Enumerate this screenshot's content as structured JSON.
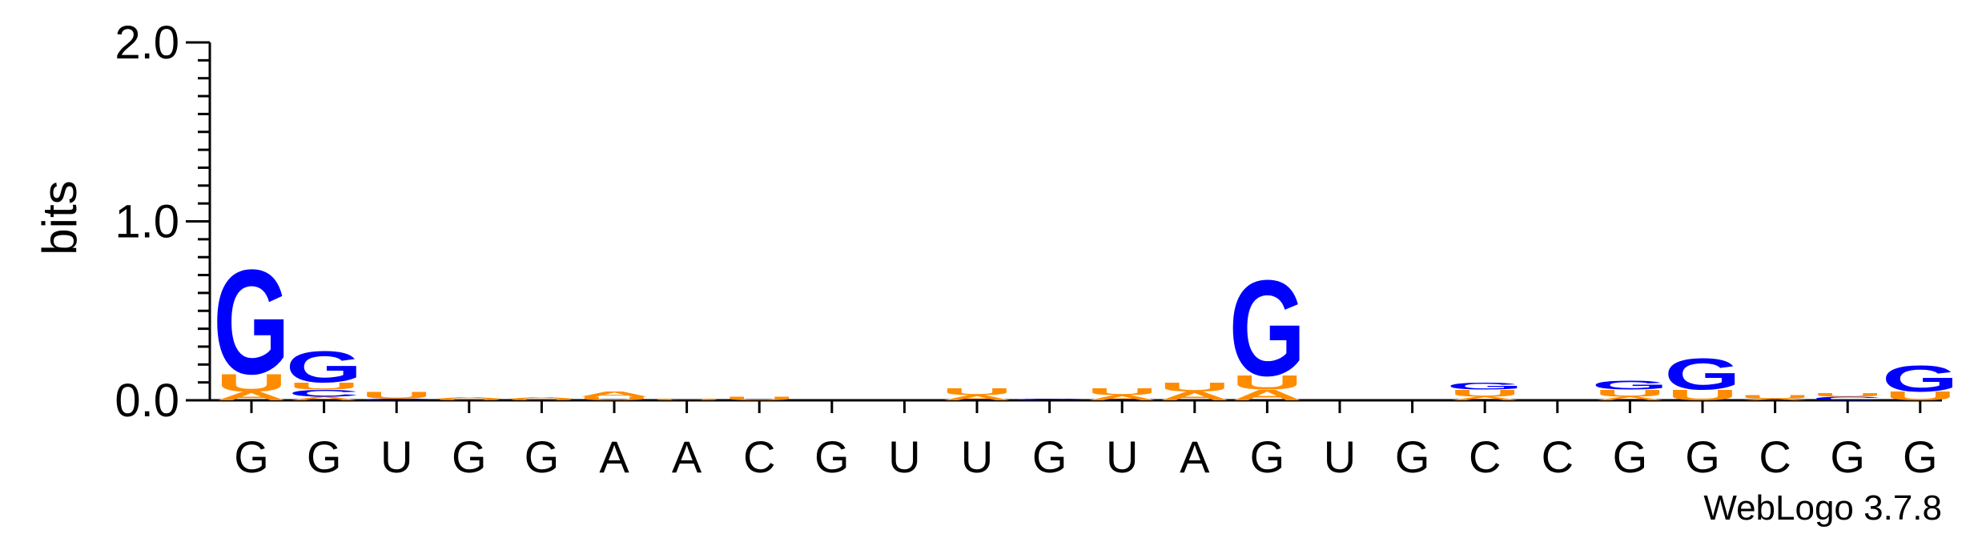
{
  "chart_data": {
    "type": "sequence-logo",
    "ylabel": "bits",
    "ylim": [
      0,
      2.0
    ],
    "yticks": [
      "0.0",
      "1.0",
      "2.0"
    ],
    "credit": "WebLogo 3.7.8",
    "colors": {
      "G": "#0000ff",
      "U": "#ff8c00",
      "A": "#ff8c00",
      "C": "#0000ff"
    },
    "positions": [
      {
        "label": "G",
        "stack": [
          [
            "A",
            0.05
          ],
          [
            "U",
            0.1
          ],
          [
            "G",
            0.6
          ]
        ]
      },
      {
        "label": "G",
        "stack": [
          [
            "A",
            0.02
          ],
          [
            "C",
            0.04
          ],
          [
            "U",
            0.04
          ],
          [
            "G",
            0.18
          ]
        ]
      },
      {
        "label": "U",
        "stack": [
          [
            "C",
            0.01
          ],
          [
            "U",
            0.04
          ]
        ]
      },
      {
        "label": "G",
        "stack": [
          [
            "U",
            0.01
          ],
          [
            "A",
            0.01
          ]
        ]
      },
      {
        "label": "G",
        "stack": [
          [
            "U",
            0.01
          ],
          [
            "A",
            0.01
          ]
        ]
      },
      {
        "label": "A",
        "stack": [
          [
            "U",
            0.02
          ],
          [
            "A",
            0.03
          ]
        ]
      },
      {
        "label": "A",
        "stack": [
          [
            "U",
            0.01
          ]
        ]
      },
      {
        "label": "C",
        "stack": [
          [
            "U",
            0.02
          ]
        ]
      },
      {
        "label": "G",
        "stack": []
      },
      {
        "label": "U",
        "stack": []
      },
      {
        "label": "U",
        "stack": [
          [
            "A",
            0.03
          ],
          [
            "U",
            0.04
          ]
        ]
      },
      {
        "label": "G",
        "stack": [
          [
            "C",
            0.01
          ]
        ]
      },
      {
        "label": "U",
        "stack": [
          [
            "A",
            0.03
          ],
          [
            "U",
            0.04
          ]
        ]
      },
      {
        "label": "A",
        "stack": [
          [
            "A",
            0.05
          ],
          [
            "U",
            0.05
          ]
        ]
      },
      {
        "label": "G",
        "stack": [
          [
            "A",
            0.06
          ],
          [
            "U",
            0.08
          ],
          [
            "G",
            0.55
          ]
        ]
      },
      {
        "label": "U",
        "stack": []
      },
      {
        "label": "G",
        "stack": []
      },
      {
        "label": "C",
        "stack": [
          [
            "A",
            0.02
          ],
          [
            "U",
            0.04
          ],
          [
            "G",
            0.04
          ]
        ]
      },
      {
        "label": "C",
        "stack": []
      },
      {
        "label": "G",
        "stack": [
          [
            "A",
            0.02
          ],
          [
            "U",
            0.04
          ],
          [
            "G",
            0.05
          ]
        ]
      },
      {
        "label": "G",
        "stack": [
          [
            "U",
            0.06
          ],
          [
            "G",
            0.18
          ]
        ]
      },
      {
        "label": "C",
        "stack": [
          [
            "A",
            0.01
          ],
          [
            "U",
            0.02
          ]
        ]
      },
      {
        "label": "G",
        "stack": [
          [
            "C",
            0.02
          ],
          [
            "U",
            0.02
          ]
        ]
      },
      {
        "label": "G",
        "stack": [
          [
            "U",
            0.05
          ],
          [
            "G",
            0.15
          ]
        ]
      }
    ]
  }
}
